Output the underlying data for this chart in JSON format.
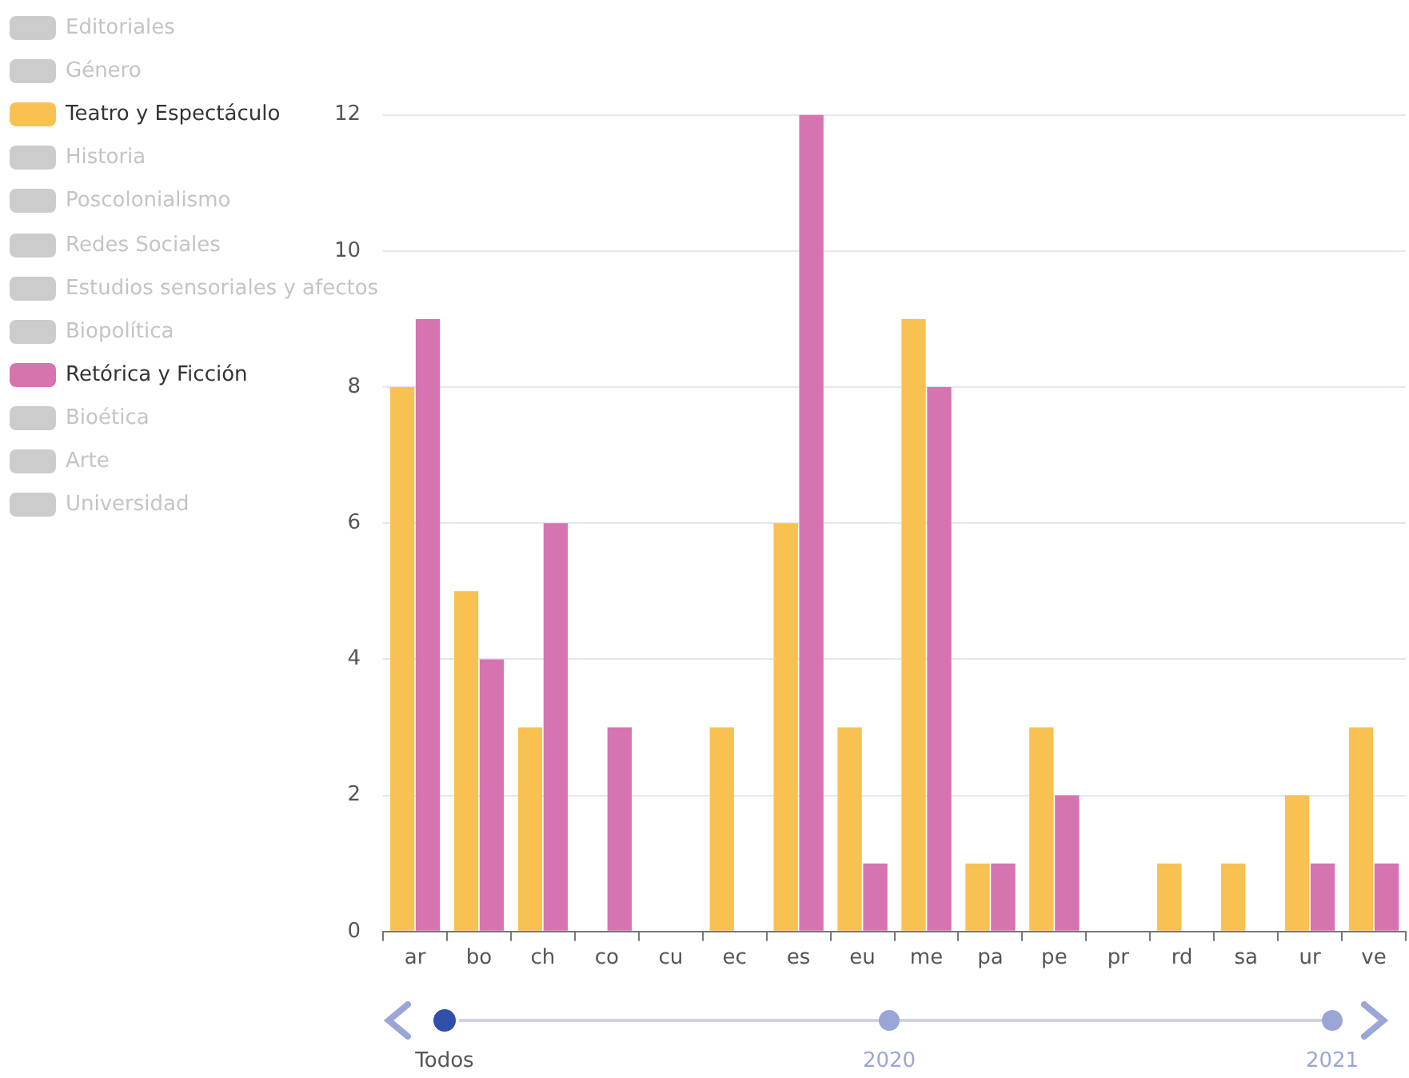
{
  "chart_data": {
    "type": "bar",
    "categories": [
      "ar",
      "bo",
      "ch",
      "co",
      "cu",
      "ec",
      "es",
      "eu",
      "me",
      "pa",
      "pe",
      "pr",
      "rd",
      "sa",
      "ur",
      "ve"
    ],
    "series": [
      {
        "name": "Editoriales",
        "color": "#cccccc",
        "values": [
          null,
          null,
          null,
          null,
          null,
          null,
          null,
          null,
          null,
          null,
          null,
          null,
          null,
          null,
          null,
          null
        ]
      },
      {
        "name": "Género",
        "color": "#cccccc",
        "values": [
          null,
          null,
          null,
          null,
          null,
          null,
          null,
          null,
          null,
          null,
          null,
          null,
          null,
          null,
          null,
          null
        ]
      },
      {
        "name": "Teatro y Espectáculo",
        "color": "#f9c152",
        "values": [
          8,
          5,
          3,
          0,
          0,
          3,
          6,
          3,
          9,
          1,
          3,
          0,
          1,
          1,
          2,
          3
        ]
      },
      {
        "name": "Historia",
        "color": "#cccccc",
        "values": [
          null,
          null,
          null,
          null,
          null,
          null,
          null,
          null,
          null,
          null,
          null,
          null,
          null,
          null,
          null,
          null
        ]
      },
      {
        "name": "Poscolonialismo",
        "color": "#cccccc",
        "values": [
          null,
          null,
          null,
          null,
          null,
          null,
          null,
          null,
          null,
          null,
          null,
          null,
          null,
          null,
          null,
          null
        ]
      },
      {
        "name": "Redes Sociales",
        "color": "#cccccc",
        "values": [
          null,
          null,
          null,
          null,
          null,
          null,
          null,
          null,
          null,
          null,
          null,
          null,
          null,
          null,
          null,
          null
        ]
      },
      {
        "name": "Estudios sensoriales y afectos",
        "color": "#cccccc",
        "values": [
          null,
          null,
          null,
          null,
          null,
          null,
          null,
          null,
          null,
          null,
          null,
          null,
          null,
          null,
          null,
          null
        ]
      },
      {
        "name": "Biopolítica",
        "color": "#cccccc",
        "values": [
          null,
          null,
          null,
          null,
          null,
          null,
          null,
          null,
          null,
          null,
          null,
          null,
          null,
          null,
          null,
          null
        ]
      },
      {
        "name": "Retórica y Ficción",
        "color": "#d674b0",
        "values": [
          9,
          4,
          6,
          3,
          0,
          0,
          12,
          1,
          8,
          1,
          2,
          0,
          0,
          0,
          1,
          1
        ]
      },
      {
        "name": "Bioética",
        "color": "#cccccc",
        "values": [
          null,
          null,
          null,
          null,
          null,
          null,
          null,
          null,
          null,
          null,
          null,
          null,
          null,
          null,
          null,
          null
        ]
      },
      {
        "name": "Arte",
        "color": "#cccccc",
        "values": [
          null,
          null,
          null,
          null,
          null,
          null,
          null,
          null,
          null,
          null,
          null,
          null,
          null,
          null,
          null,
          null
        ]
      },
      {
        "name": "Universidad",
        "color": "#cccccc",
        "values": [
          null,
          null,
          null,
          null,
          null,
          null,
          null,
          null,
          null,
          null,
          null,
          null,
          null,
          null,
          null,
          null
        ]
      }
    ],
    "ylim": [
      0,
      12
    ],
    "yticks": [
      0,
      2,
      4,
      6,
      8,
      10,
      12
    ],
    "grid": "y",
    "legend": "top left",
    "annotations": [
      "Todos",
      "2020",
      "2021"
    ]
  }
}
